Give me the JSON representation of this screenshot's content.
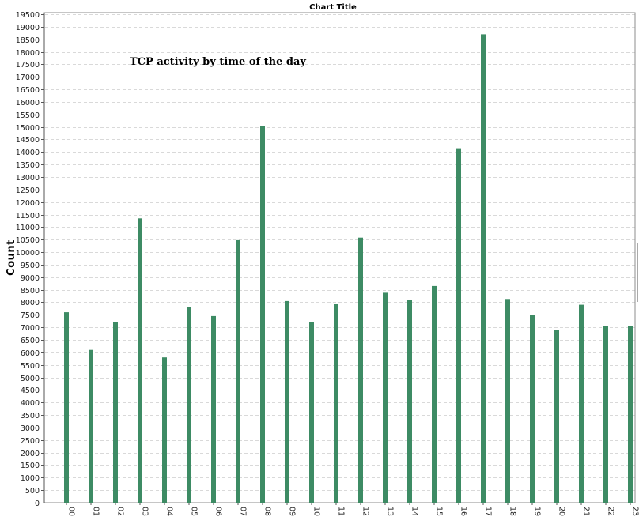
{
  "chart_data": {
    "type": "bar",
    "title": "Chart Title",
    "annotation": "TCP activity by time of the day",
    "xlabel": "",
    "ylabel": "Count",
    "ylim": [
      0,
      19500
    ],
    "ytick_step": 500,
    "grid": true,
    "legend": "none",
    "bar_color": "#3d8b64",
    "categories": [
      "00",
      "01",
      "02",
      "03",
      "04",
      "05",
      "06",
      "07",
      "08",
      "09",
      "10",
      "11",
      "12",
      "13",
      "14",
      "15",
      "16",
      "17",
      "18",
      "19",
      "20",
      "21",
      "22",
      "23"
    ],
    "values": [
      7600,
      6100,
      7200,
      11350,
      5800,
      7800,
      7450,
      10480,
      15050,
      8050,
      7200,
      7920,
      10580,
      8380,
      8100,
      8650,
      14150,
      18700,
      8130,
      7500,
      6900,
      7900,
      7050,
      7050
    ]
  }
}
